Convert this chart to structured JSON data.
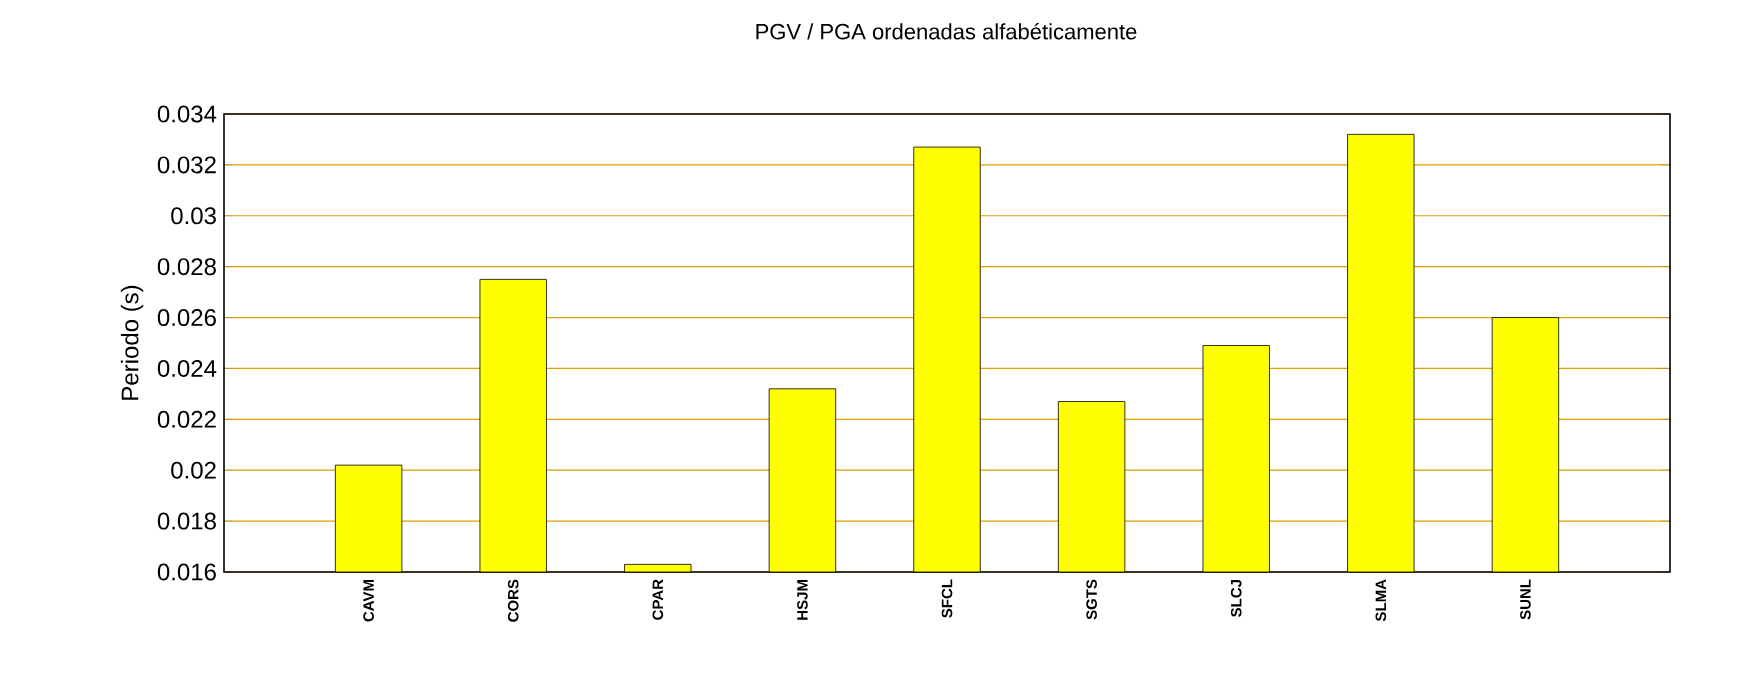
{
  "chart_data": {
    "type": "bar",
    "title": "PGV / PGA ordenadas alfabéticamente",
    "ylabel": "Periodo (s)",
    "categories": [
      "CAVM",
      "CORS",
      "CPAR",
      "HSJM",
      "SFCL",
      "SGTS",
      "SLCJ",
      "SLMA",
      "SUNL"
    ],
    "values": [
      0.0202,
      0.0275,
      0.0163,
      0.0232,
      0.0327,
      0.0227,
      0.0249,
      0.0332,
      0.026
    ],
    "color": "#ffff00",
    "ylim": [
      0.016,
      0.034
    ],
    "yticks": [
      0.016,
      0.018,
      0.02,
      0.022,
      0.024,
      0.026,
      0.028,
      0.03,
      0.032,
      0.034
    ],
    "grid": "y"
  }
}
